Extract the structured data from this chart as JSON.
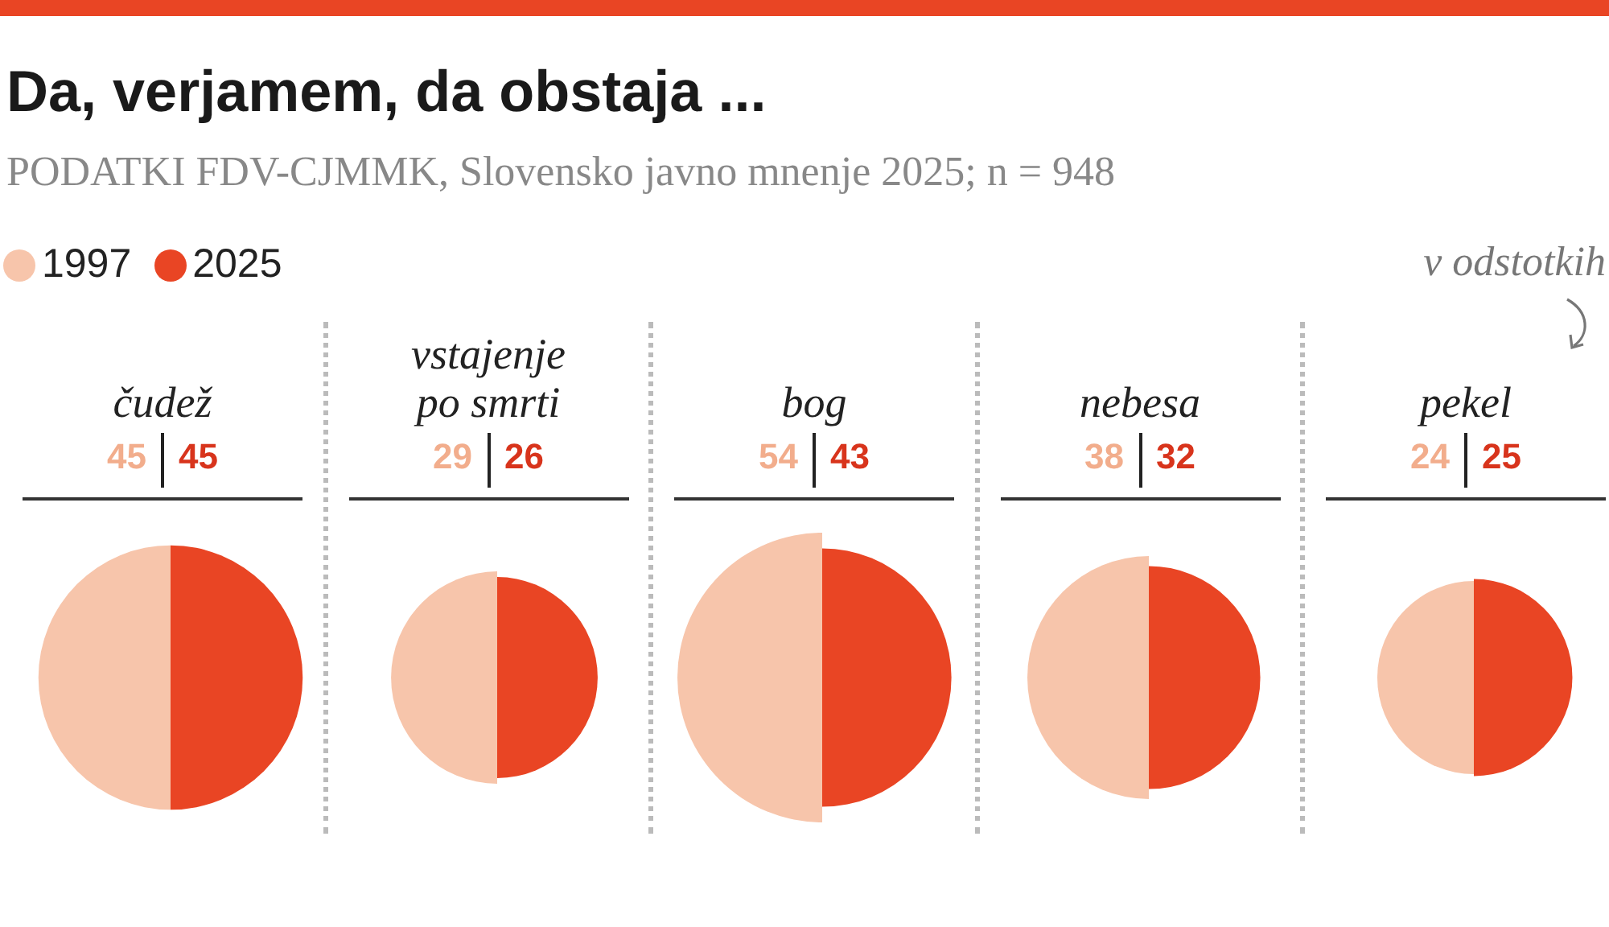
{
  "chart_data": {
    "type": "other",
    "title": "Da, verjamem, da obstaja ...",
    "subtitle": "PODATKI FDV-CJMMK, Slovensko javno mnenje 2025; n = 948",
    "categories": [
      "čudež",
      "vstajenje po smrti",
      "bog",
      "nebesa",
      "pekel"
    ],
    "series": [
      {
        "name": "1997",
        "color": "#f7c5ab",
        "values": [
          45,
          29,
          54,
          38,
          24
        ]
      },
      {
        "name": "2025",
        "color": "#e94524",
        "values": [
          45,
          26,
          43,
          32,
          25
        ]
      }
    ],
    "data_labels": true,
    "legend": "top left",
    "annotations": [
      "v odstotkih"
    ]
  }
}
